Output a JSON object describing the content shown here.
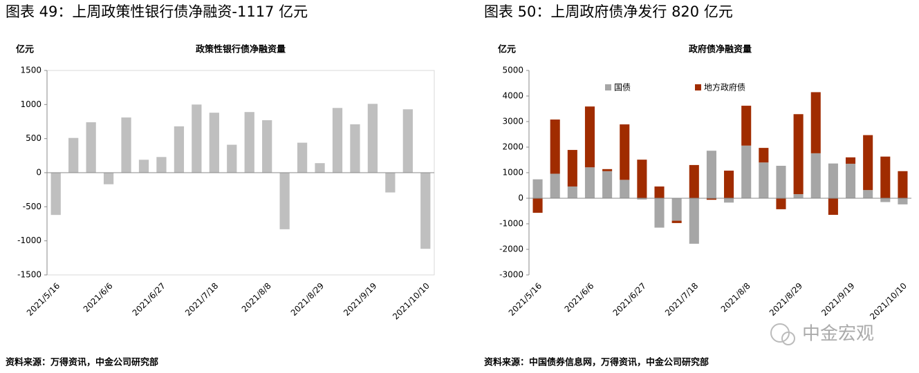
{
  "chart_data": [
    {
      "type": "bar",
      "heading": "图表 49：上周政策性银行债净融资-1117 亿元",
      "title": "政策性银行债净融资量",
      "y_unit": "亿元",
      "source": "资料来源：万得资讯，中金公司研究部",
      "categories": [
        "2021/5/16",
        null,
        null,
        "2021/6/6",
        null,
        null,
        "2021/6/27",
        null,
        null,
        "2021/7/18",
        null,
        null,
        "2021/8/8",
        null,
        null,
        "2021/8/29",
        null,
        null,
        "2021/9/19",
        null,
        null,
        "2021/10/10"
      ],
      "values": [
        -620,
        510,
        740,
        -170,
        810,
        190,
        230,
        680,
        1000,
        880,
        410,
        890,
        770,
        -830,
        440,
        140,
        950,
        710,
        1010,
        -290,
        930,
        -1117
      ],
      "color": "#bfbfbf",
      "ylim": [
        -1500,
        1500
      ],
      "yticks": [
        -1500,
        -1000,
        -500,
        0,
        500,
        1000,
        1500
      ]
    },
    {
      "type": "bar",
      "stacked": true,
      "heading": "图表 50：上周政府债净发行 820 亿元",
      "title": "政府债净融资量",
      "y_unit": "亿元",
      "source": "资料来源：中国债券信息网，万得资讯，中金公司研究部",
      "legend": "top",
      "categories": [
        "2021/5/16",
        null,
        null,
        "2021/6/6",
        null,
        null,
        "2021/6/27",
        null,
        null,
        "2021/7/18",
        null,
        null,
        "2021/8/8",
        null,
        null,
        "2021/8/29",
        null,
        null,
        "2021/9/19",
        null,
        null,
        "2021/10/10"
      ],
      "series": [
        {
          "name": "国债",
          "color": "#a6a6a6",
          "values": [
            740,
            960,
            460,
            1210,
            1060,
            720,
            -50,
            -1150,
            -880,
            -1780,
            1860,
            -170,
            2060,
            1400,
            1270,
            160,
            1760,
            1360,
            1350,
            320,
            -150,
            -240
          ]
        },
        {
          "name": "地方政府债",
          "color": "#a02c00",
          "values": [
            -570,
            2120,
            1430,
            2380,
            80,
            2170,
            1510,
            460,
            -90,
            1300,
            -60,
            1080,
            1560,
            570,
            -430,
            3130,
            2390,
            -650,
            250,
            2150,
            1630,
            1060
          ]
        }
      ],
      "ylim": [
        -3000,
        5000
      ],
      "yticks": [
        -3000,
        -2000,
        -1000,
        0,
        1000,
        2000,
        3000,
        4000,
        5000
      ]
    }
  ],
  "watermark": "中金宏观"
}
